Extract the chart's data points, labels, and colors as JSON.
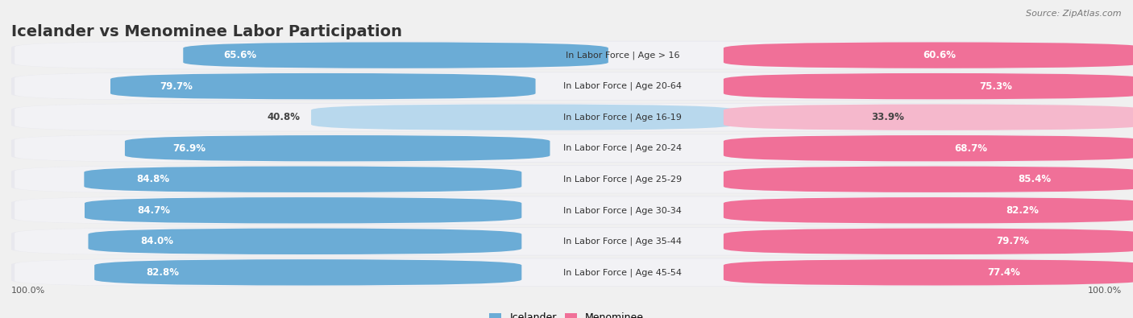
{
  "title": "Icelander vs Menominee Labor Participation",
  "source": "Source: ZipAtlas.com",
  "categories": [
    "In Labor Force | Age > 16",
    "In Labor Force | Age 20-64",
    "In Labor Force | Age 16-19",
    "In Labor Force | Age 20-24",
    "In Labor Force | Age 25-29",
    "In Labor Force | Age 30-34",
    "In Labor Force | Age 35-44",
    "In Labor Force | Age 45-54"
  ],
  "icelander_values": [
    65.6,
    79.7,
    40.8,
    76.9,
    84.8,
    84.7,
    84.0,
    82.8
  ],
  "menominee_values": [
    60.6,
    75.3,
    33.9,
    68.7,
    85.4,
    82.2,
    79.7,
    77.4
  ],
  "icelander_color": "#6bacd6",
  "icelander_color_light": "#b8d8ed",
  "menominee_color": "#f07098",
  "menominee_color_light": "#f5b8cc",
  "row_bg_color": "#e8e8ee",
  "row_fill_color": "#f5f5f8",
  "background_color": "#f0f0f0",
  "label_color_dark": "#444444",
  "label_color_white": "#ffffff",
  "title_fontsize": 14,
  "bar_fontsize": 8.5,
  "cat_fontsize": 8,
  "max_value": 100.0,
  "legend_labels": [
    "Icelander",
    "Menominee"
  ],
  "bottom_label": "100.0%"
}
